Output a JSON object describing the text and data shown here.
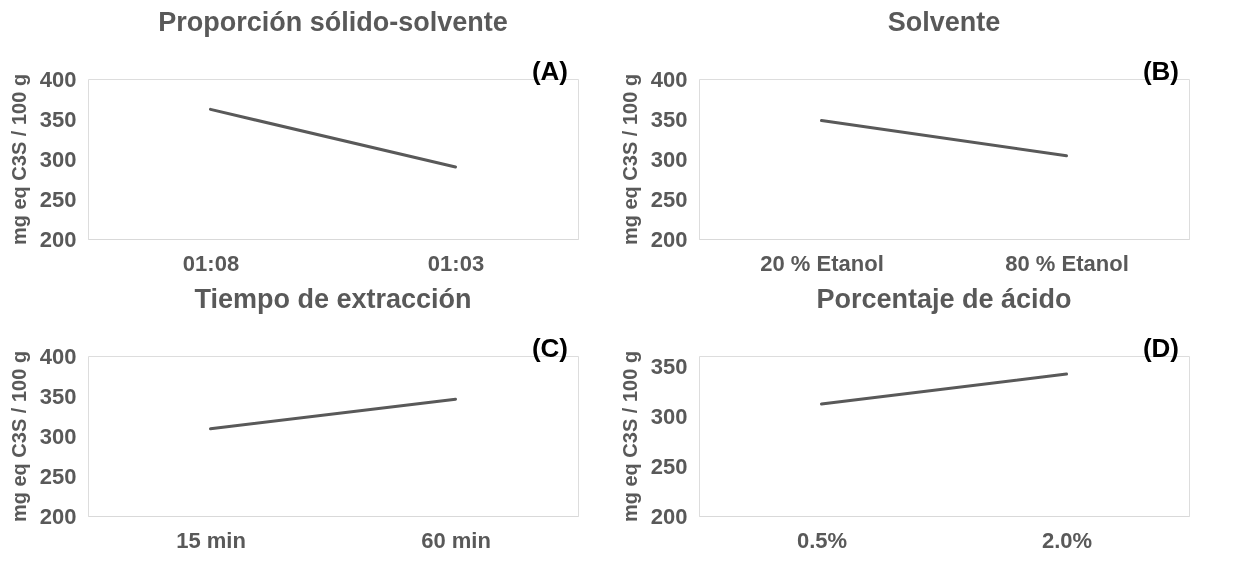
{
  "chart_data": [
    {
      "type": "line",
      "title": "Proporción sólido-solvente",
      "ylabel": "mg eq C3S / 100 g",
      "annotations": [
        "(A)"
      ],
      "categories": [
        "01:08",
        "01:03"
      ],
      "series": [
        {
          "color": "#595959",
          "values": [
            362,
            290
          ]
        }
      ],
      "ylim": [
        200,
        400
      ],
      "yticks": [
        200,
        250,
        300,
        350,
        400
      ],
      "grid": false,
      "marker": "none",
      "line_style": "solid"
    },
    {
      "type": "line",
      "title": "Solvente",
      "ylabel": "mg eq C3S / 100 g",
      "annotations": [
        "(B)"
      ],
      "categories": [
        "20 % Etanol",
        "80 % Etanol"
      ],
      "series": [
        {
          "color": "#595959",
          "values": [
            348,
            304
          ]
        }
      ],
      "ylim": [
        200,
        400
      ],
      "yticks": [
        200,
        250,
        300,
        350,
        400
      ],
      "grid": false,
      "marker": "none",
      "line_style": "solid"
    },
    {
      "type": "line",
      "title": "Tiempo de extracción",
      "ylabel": "mg eq C3S / 100 g",
      "annotations": [
        "(C)"
      ],
      "categories": [
        "15 min",
        "60 min"
      ],
      "series": [
        {
          "color": "#595959",
          "values": [
            309,
            346
          ]
        }
      ],
      "ylim": [
        200,
        400
      ],
      "yticks": [
        200,
        250,
        300,
        350,
        400
      ],
      "grid": false,
      "marker": "none",
      "line_style": "solid"
    },
    {
      "type": "line",
      "title": "Porcentaje de ácido",
      "ylabel": "mg eq C3S / 100 g",
      "annotations": [
        "(D)"
      ],
      "categories": [
        "0.5%",
        "2.0%"
      ],
      "series": [
        {
          "color": "#595959",
          "values": [
            312,
            342
          ]
        }
      ],
      "ylim": [
        200,
        360
      ],
      "yticks": [
        200,
        250,
        300,
        350
      ],
      "grid": false,
      "marker": "none",
      "line_style": "solid"
    }
  ]
}
